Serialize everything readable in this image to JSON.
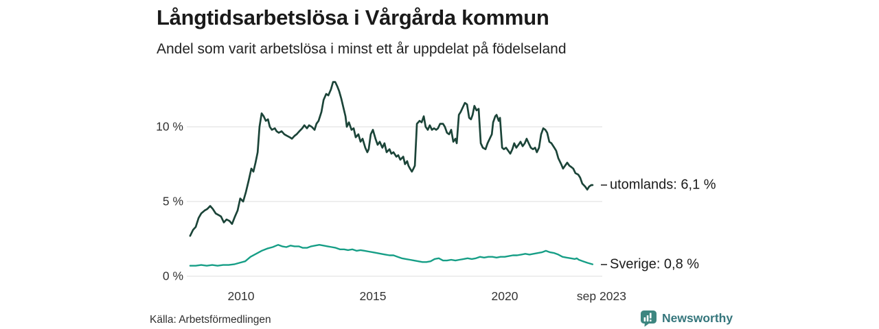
{
  "header": {
    "title": "Långtidsarbetslösa i Vårgårda kommun",
    "subtitle": "Andel som varit arbetslösa i minst ett år uppdelat på födelseland"
  },
  "source": {
    "label": "Källa: Arbetsförmedlingen"
  },
  "branding": {
    "name": "Newsworthy",
    "logo_icon": "bar-chart-speech-bubble-icon",
    "color": "#3d8680"
  },
  "chart_data": {
    "type": "line",
    "title": "Långtidsarbetslösa i Vårgårda kommun",
    "subtitle": "Andel som varit arbetslösa i minst ett år uppdelat på födelseland",
    "xlabel": "",
    "ylabel": "",
    "grid": "horizontal",
    "grid_color": "#e3e3e3",
    "xlim": [
      2008.0,
      2023.75
    ],
    "ylim": [
      0,
      13.5
    ],
    "x_ticks": [
      {
        "label": "2010",
        "year": 2010
      },
      {
        "label": "2015",
        "year": 2015
      },
      {
        "label": "2020",
        "year": 2020
      },
      {
        "label": "sep 2023",
        "year": 2023.67
      }
    ],
    "y_ticks": [
      {
        "label": "10 %",
        "value": 10
      },
      {
        "label": "5 %",
        "value": 5
      },
      {
        "label": "0 %",
        "value": 0
      }
    ],
    "series": [
      {
        "name": "utomlands",
        "label": "utomlands: 6,1 %",
        "last_value": "6,1 %",
        "color": "#1b4438",
        "points": [
          [
            2008.07,
            2.7
          ],
          [
            2008.18,
            3.1
          ],
          [
            2008.28,
            3.3
          ],
          [
            2008.39,
            3.9
          ],
          [
            2008.49,
            4.2
          ],
          [
            2008.62,
            4.4
          ],
          [
            2008.72,
            4.5
          ],
          [
            2008.83,
            4.7
          ],
          [
            2008.93,
            4.5
          ],
          [
            2009.04,
            4.2
          ],
          [
            2009.14,
            4.1
          ],
          [
            2009.24,
            4.0
          ],
          [
            2009.35,
            3.6
          ],
          [
            2009.45,
            3.8
          ],
          [
            2009.56,
            3.7
          ],
          [
            2009.66,
            3.5
          ],
          [
            2009.77,
            4.0
          ],
          [
            2009.87,
            4.4
          ],
          [
            2009.97,
            5.2
          ],
          [
            2010.08,
            5.0
          ],
          [
            2010.18,
            5.6
          ],
          [
            2010.29,
            6.4
          ],
          [
            2010.39,
            7.2
          ],
          [
            2010.47,
            7.0
          ],
          [
            2010.55,
            7.6
          ],
          [
            2010.63,
            8.3
          ],
          [
            2010.7,
            10.0
          ],
          [
            2010.78,
            10.9
          ],
          [
            2010.86,
            10.7
          ],
          [
            2010.94,
            10.4
          ],
          [
            2011.02,
            10.5
          ],
          [
            2011.09,
            10.0
          ],
          [
            2011.17,
            9.8
          ],
          [
            2011.28,
            9.9
          ],
          [
            2011.35,
            9.7
          ],
          [
            2011.43,
            9.6
          ],
          [
            2011.54,
            9.7
          ],
          [
            2011.64,
            9.5
          ],
          [
            2011.74,
            9.4
          ],
          [
            2011.85,
            9.3
          ],
          [
            2011.93,
            9.2
          ],
          [
            2012.03,
            9.4
          ],
          [
            2012.11,
            9.5
          ],
          [
            2012.21,
            9.7
          ],
          [
            2012.32,
            9.9
          ],
          [
            2012.4,
            10.1
          ],
          [
            2012.5,
            9.9
          ],
          [
            2012.58,
            10.1
          ],
          [
            2012.68,
            10.0
          ],
          [
            2012.79,
            9.8
          ],
          [
            2012.86,
            10.2
          ],
          [
            2012.94,
            10.4
          ],
          [
            2013.05,
            11.0
          ],
          [
            2013.13,
            11.8
          ],
          [
            2013.23,
            12.2
          ],
          [
            2013.31,
            12.1
          ],
          [
            2013.41,
            12.5
          ],
          [
            2013.49,
            13.0
          ],
          [
            2013.57,
            13.0
          ],
          [
            2013.65,
            12.7
          ],
          [
            2013.72,
            12.4
          ],
          [
            2013.8,
            11.9
          ],
          [
            2013.88,
            11.3
          ],
          [
            2013.96,
            10.7
          ],
          [
            2014.01,
            10.0
          ],
          [
            2014.09,
            10.3
          ],
          [
            2014.19,
            9.8
          ],
          [
            2014.27,
            9.9
          ],
          [
            2014.35,
            9.3
          ],
          [
            2014.45,
            9.5
          ],
          [
            2014.53,
            9.0
          ],
          [
            2014.61,
            9.2
          ],
          [
            2014.71,
            8.6
          ],
          [
            2014.79,
            8.3
          ],
          [
            2014.84,
            8.5
          ],
          [
            2014.92,
            9.5
          ],
          [
            2015.0,
            9.8
          ],
          [
            2015.1,
            9.2
          ],
          [
            2015.18,
            8.8
          ],
          [
            2015.26,
            9.0
          ],
          [
            2015.36,
            8.6
          ],
          [
            2015.44,
            8.9
          ],
          [
            2015.52,
            8.3
          ],
          [
            2015.63,
            8.5
          ],
          [
            2015.7,
            8.2
          ],
          [
            2015.78,
            8.3
          ],
          [
            2015.89,
            8.0
          ],
          [
            2015.96,
            8.1
          ],
          [
            2016.04,
            7.8
          ],
          [
            2016.15,
            8.0
          ],
          [
            2016.22,
            7.5
          ],
          [
            2016.3,
            7.7
          ],
          [
            2016.35,
            7.4
          ],
          [
            2016.41,
            7.2
          ],
          [
            2016.48,
            7.0
          ],
          [
            2016.54,
            7.2
          ],
          [
            2016.59,
            7.4
          ],
          [
            2016.67,
            10.2
          ],
          [
            2016.77,
            10.4
          ],
          [
            2016.85,
            10.3
          ],
          [
            2016.93,
            10.7
          ],
          [
            2017.0,
            10.0
          ],
          [
            2017.08,
            9.8
          ],
          [
            2017.16,
            10.1
          ],
          [
            2017.24,
            9.8
          ],
          [
            2017.32,
            9.9
          ],
          [
            2017.4,
            9.8
          ],
          [
            2017.47,
            9.9
          ],
          [
            2017.55,
            10.2
          ],
          [
            2017.66,
            10.2
          ],
          [
            2017.73,
            10.0
          ],
          [
            2017.81,
            9.6
          ],
          [
            2017.89,
            9.5
          ],
          [
            2017.97,
            9.8
          ],
          [
            2018.05,
            9.0
          ],
          [
            2018.13,
            9.2
          ],
          [
            2018.18,
            8.9
          ],
          [
            2018.26,
            10.8
          ],
          [
            2018.33,
            11.0
          ],
          [
            2018.41,
            11.3
          ],
          [
            2018.49,
            11.6
          ],
          [
            2018.57,
            11.5
          ],
          [
            2018.65,
            10.6
          ],
          [
            2018.72,
            10.5
          ],
          [
            2018.78,
            10.8
          ],
          [
            2018.85,
            11.4
          ],
          [
            2018.93,
            11.1
          ],
          [
            2019.01,
            11.2
          ],
          [
            2019.09,
            8.9
          ],
          [
            2019.17,
            8.6
          ],
          [
            2019.27,
            8.5
          ],
          [
            2019.35,
            8.9
          ],
          [
            2019.43,
            9.2
          ],
          [
            2019.51,
            9.5
          ],
          [
            2019.56,
            10.3
          ],
          [
            2019.64,
            10.7
          ],
          [
            2019.69,
            10.8
          ],
          [
            2019.77,
            10.4
          ],
          [
            2019.82,
            10.6
          ],
          [
            2019.9,
            8.6
          ],
          [
            2019.97,
            8.5
          ],
          [
            2020.05,
            8.6
          ],
          [
            2020.13,
            8.4
          ],
          [
            2020.21,
            8.2
          ],
          [
            2020.29,
            8.5
          ],
          [
            2020.36,
            8.9
          ],
          [
            2020.44,
            8.6
          ],
          [
            2020.52,
            8.8
          ],
          [
            2020.6,
            9.0
          ],
          [
            2020.68,
            8.7
          ],
          [
            2020.76,
            8.9
          ],
          [
            2020.83,
            9.2
          ],
          [
            2020.91,
            8.9
          ],
          [
            2020.99,
            8.6
          ],
          [
            2021.07,
            8.5
          ],
          [
            2021.15,
            8.6
          ],
          [
            2021.22,
            8.3
          ],
          [
            2021.3,
            8.6
          ],
          [
            2021.38,
            9.5
          ],
          [
            2021.46,
            9.9
          ],
          [
            2021.54,
            9.8
          ],
          [
            2021.61,
            9.6
          ],
          [
            2021.69,
            9.0
          ],
          [
            2021.77,
            8.9
          ],
          [
            2021.88,
            8.6
          ],
          [
            2021.95,
            8.4
          ],
          [
            2022.03,
            7.9
          ],
          [
            2022.14,
            7.5
          ],
          [
            2022.21,
            7.2
          ],
          [
            2022.29,
            7.4
          ],
          [
            2022.37,
            7.6
          ],
          [
            2022.45,
            7.4
          ],
          [
            2022.53,
            7.3
          ],
          [
            2022.6,
            7.2
          ],
          [
            2022.68,
            6.9
          ],
          [
            2022.79,
            6.8
          ],
          [
            2022.86,
            6.6
          ],
          [
            2022.94,
            6.2
          ],
          [
            2023.05,
            6.0
          ],
          [
            2023.13,
            5.8
          ],
          [
            2023.2,
            6.0
          ],
          [
            2023.28,
            6.1
          ],
          [
            2023.33,
            6.1
          ]
        ]
      },
      {
        "name": "Sverige",
        "label": "Sverige: 0,8 %",
        "last_value": "0,8 %",
        "color": "#169e86",
        "points": [
          [
            2008.07,
            0.7
          ],
          [
            2008.28,
            0.7
          ],
          [
            2008.49,
            0.75
          ],
          [
            2008.7,
            0.7
          ],
          [
            2008.91,
            0.75
          ],
          [
            2009.11,
            0.7
          ],
          [
            2009.32,
            0.75
          ],
          [
            2009.53,
            0.75
          ],
          [
            2009.74,
            0.8
          ],
          [
            2009.95,
            0.9
          ],
          [
            2010.16,
            1.0
          ],
          [
            2010.36,
            1.3
          ],
          [
            2010.57,
            1.5
          ],
          [
            2010.78,
            1.7
          ],
          [
            2010.99,
            1.85
          ],
          [
            2011.2,
            1.95
          ],
          [
            2011.41,
            2.1
          ],
          [
            2011.56,
            2.0
          ],
          [
            2011.72,
            1.95
          ],
          [
            2011.88,
            2.05
          ],
          [
            2012.03,
            2.0
          ],
          [
            2012.19,
            2.0
          ],
          [
            2012.34,
            1.9
          ],
          [
            2012.5,
            1.9
          ],
          [
            2012.66,
            2.0
          ],
          [
            2012.81,
            2.05
          ],
          [
            2012.97,
            2.1
          ],
          [
            2013.13,
            2.05
          ],
          [
            2013.28,
            2.0
          ],
          [
            2013.44,
            1.95
          ],
          [
            2013.59,
            1.9
          ],
          [
            2013.75,
            1.8
          ],
          [
            2013.91,
            1.8
          ],
          [
            2014.06,
            1.75
          ],
          [
            2014.22,
            1.8
          ],
          [
            2014.38,
            1.7
          ],
          [
            2014.53,
            1.75
          ],
          [
            2014.69,
            1.7
          ],
          [
            2014.84,
            1.65
          ],
          [
            2015.0,
            1.6
          ],
          [
            2015.16,
            1.55
          ],
          [
            2015.31,
            1.5
          ],
          [
            2015.47,
            1.45
          ],
          [
            2015.63,
            1.4
          ],
          [
            2015.78,
            1.4
          ],
          [
            2015.94,
            1.3
          ],
          [
            2016.09,
            1.2
          ],
          [
            2016.25,
            1.15
          ],
          [
            2016.41,
            1.1
          ],
          [
            2016.56,
            1.05
          ],
          [
            2016.72,
            1.0
          ],
          [
            2016.88,
            0.95
          ],
          [
            2017.03,
            0.95
          ],
          [
            2017.19,
            1.0
          ],
          [
            2017.34,
            1.15
          ],
          [
            2017.5,
            1.2
          ],
          [
            2017.66,
            1.05
          ],
          [
            2017.81,
            1.05
          ],
          [
            2017.97,
            1.1
          ],
          [
            2018.13,
            1.05
          ],
          [
            2018.28,
            1.1
          ],
          [
            2018.44,
            1.15
          ],
          [
            2018.59,
            1.2
          ],
          [
            2018.75,
            1.15
          ],
          [
            2018.91,
            1.2
          ],
          [
            2019.06,
            1.3
          ],
          [
            2019.22,
            1.25
          ],
          [
            2019.38,
            1.3
          ],
          [
            2019.53,
            1.3
          ],
          [
            2019.69,
            1.25
          ],
          [
            2019.84,
            1.3
          ],
          [
            2020.0,
            1.3
          ],
          [
            2020.16,
            1.35
          ],
          [
            2020.31,
            1.4
          ],
          [
            2020.47,
            1.4
          ],
          [
            2020.63,
            1.45
          ],
          [
            2020.78,
            1.5
          ],
          [
            2020.94,
            1.45
          ],
          [
            2021.09,
            1.5
          ],
          [
            2021.25,
            1.55
          ],
          [
            2021.41,
            1.6
          ],
          [
            2021.56,
            1.7
          ],
          [
            2021.72,
            1.6
          ],
          [
            2021.88,
            1.55
          ],
          [
            2022.03,
            1.45
          ],
          [
            2022.19,
            1.3
          ],
          [
            2022.34,
            1.25
          ],
          [
            2022.5,
            1.2
          ],
          [
            2022.66,
            1.15
          ],
          [
            2022.73,
            1.2
          ],
          [
            2022.81,
            1.1
          ],
          [
            2022.97,
            1.0
          ],
          [
            2023.13,
            0.9
          ],
          [
            2023.23,
            0.85
          ],
          [
            2023.33,
            0.8
          ]
        ]
      }
    ]
  }
}
